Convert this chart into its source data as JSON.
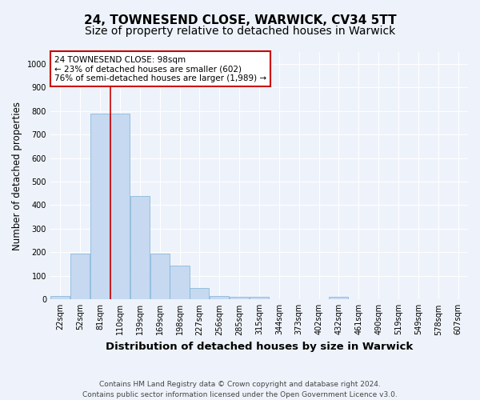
{
  "title_line1": "24, TOWNESEND CLOSE, WARWICK, CV34 5TT",
  "title_line2": "Size of property relative to detached houses in Warwick",
  "xlabel": "Distribution of detached houses by size in Warwick",
  "ylabel": "Number of detached properties",
  "bar_labels": [
    "22sqm",
    "52sqm",
    "81sqm",
    "110sqm",
    "139sqm",
    "169sqm",
    "198sqm",
    "227sqm",
    "256sqm",
    "285sqm",
    "315sqm",
    "344sqm",
    "373sqm",
    "402sqm",
    "432sqm",
    "461sqm",
    "490sqm",
    "519sqm",
    "549sqm",
    "578sqm",
    "607sqm"
  ],
  "bar_values": [
    15,
    195,
    790,
    790,
    440,
    195,
    145,
    50,
    15,
    10,
    10,
    0,
    0,
    0,
    10,
    0,
    0,
    0,
    0,
    0,
    0
  ],
  "bar_color": "#c6d9f1",
  "bar_edge_color": "#7bafd4",
  "property_line_color": "#cc0000",
  "annotation_text": "24 TOWNESEND CLOSE: 98sqm\n← 23% of detached houses are smaller (602)\n76% of semi-detached houses are larger (1,989) →",
  "annotation_box_color": "#cc0000",
  "ylim": [
    0,
    1050
  ],
  "yticks": [
    0,
    100,
    200,
    300,
    400,
    500,
    600,
    700,
    800,
    900,
    1000
  ],
  "footnote": "Contains HM Land Registry data © Crown copyright and database right 2024.\nContains public sector information licensed under the Open Government Licence v3.0.",
  "bg_color": "#eef3fb",
  "grid_color": "#ffffff",
  "title_fontsize": 11,
  "subtitle_fontsize": 10,
  "axis_label_fontsize": 8.5,
  "tick_fontsize": 7,
  "footnote_fontsize": 6.5
}
